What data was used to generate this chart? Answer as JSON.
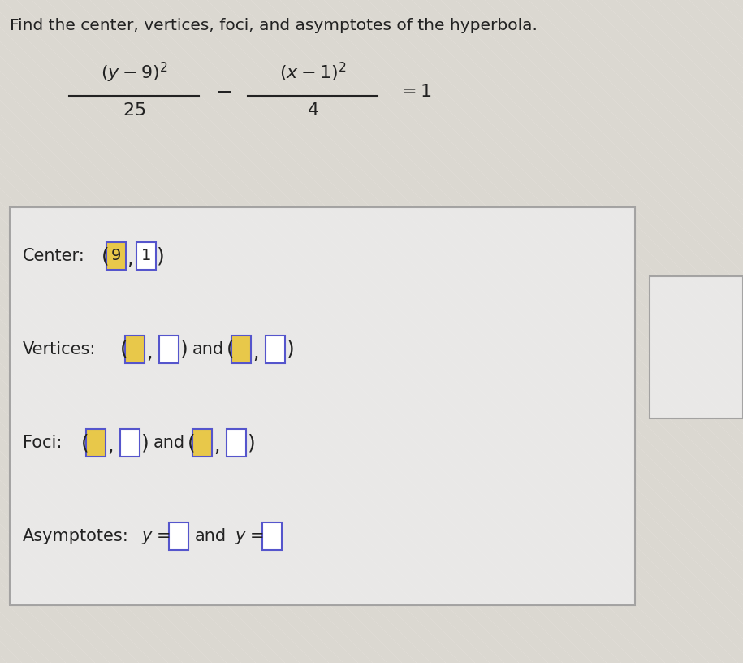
{
  "title": "Find the center, vertices, foci, and asymptotes of the hyperbola.",
  "center_label": "Center:",
  "center_9": "9",
  "center_1": "1",
  "vertices_label": "Vertices:",
  "foci_label": "Foci:",
  "asymptotes_label": "Asymptotes:",
  "box_fill_yellow": "#E8C84A",
  "box_fill_white": "#FFFFFF",
  "box_border_blue": "#5555CC",
  "box_border_yellow": "#BBAA00",
  "bg_color_light": "#E8E4DE",
  "bg_color_stripe1": "#DDD9D2",
  "bg_color_stripe2": "#E8E4DE",
  "answer_box_bg": "#ECECEC",
  "answer_box_edge": "#999999",
  "text_color": "#222222",
  "font_size_title": 14.5,
  "font_size_eq": 16,
  "font_size_body": 15,
  "fig_width": 9.15,
  "fig_height": 8.16,
  "dpi": 100
}
